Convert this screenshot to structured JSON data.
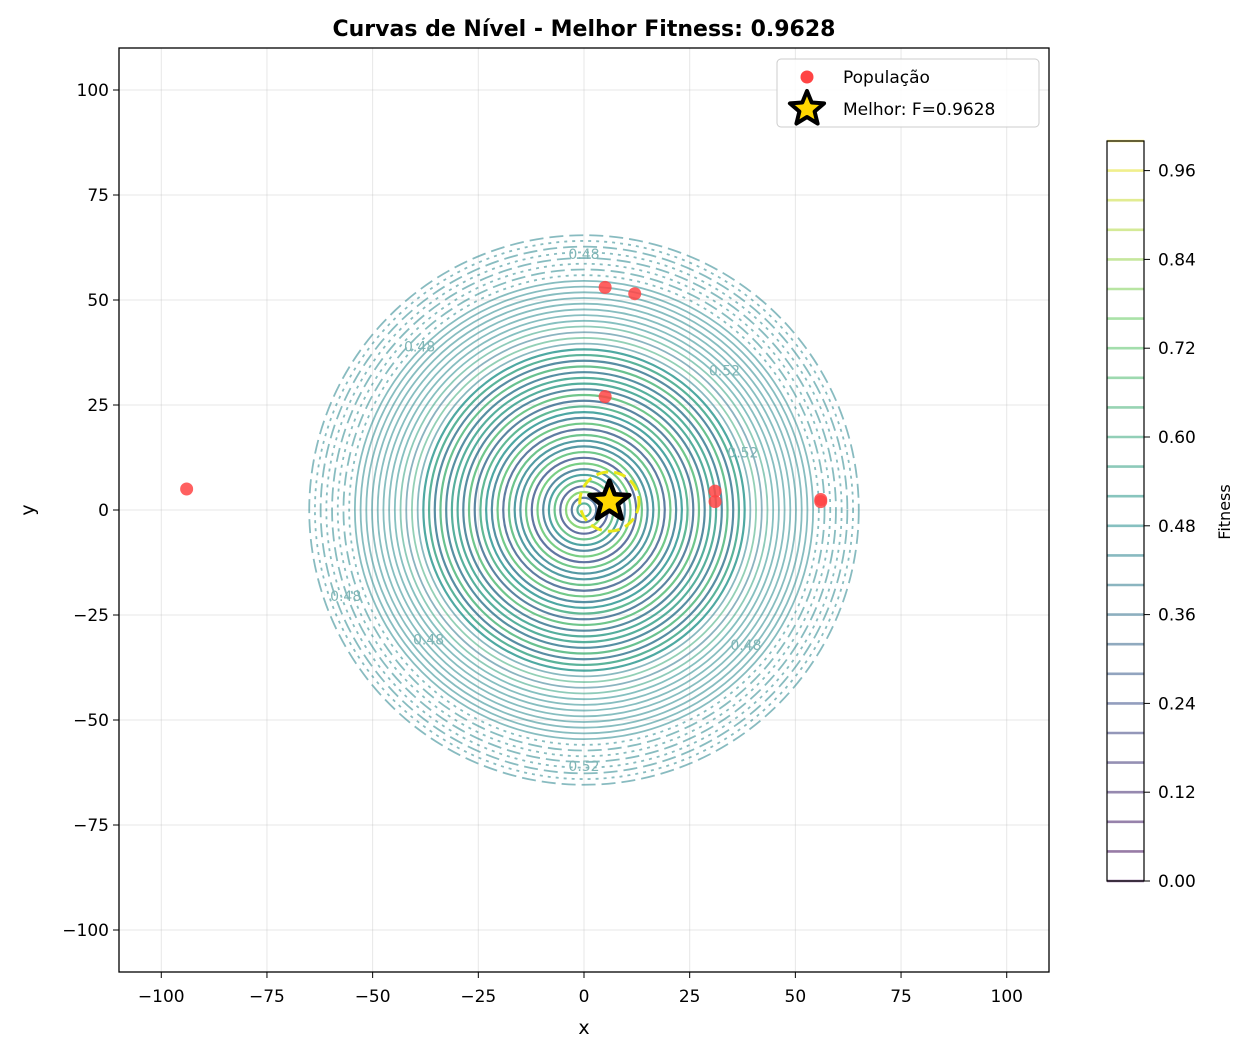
{
  "chart_data": {
    "type": "scatter",
    "title": "Curvas de Nível - Melhor Fitness: 0.9628",
    "xlabel": "x",
    "ylabel": "y",
    "xlim": [
      -110,
      110
    ],
    "ylim": [
      -110,
      110
    ],
    "xticks": [
      "−100",
      "−75",
      "−50",
      "−25",
      "0",
      "25",
      "50",
      "75",
      "100"
    ],
    "yticks": [
      "100",
      "75",
      "50",
      "25",
      "0",
      "−25",
      "−50",
      "−75",
      "−100"
    ],
    "grid": true,
    "legend_position": "top-right",
    "contour": {
      "center": [
        0,
        0
      ],
      "outer_radius": 65,
      "visible_labels": [
        "0.48",
        "0.52",
        "0.48",
        "0.52",
        "0.48",
        "0.52",
        "0.48",
        "0.48"
      ]
    },
    "series": [
      {
        "name": "População",
        "color": "#ff4444",
        "points": [
          {
            "x": -94,
            "y": 5
          },
          {
            "x": 5,
            "y": 53
          },
          {
            "x": 12,
            "y": 51.5
          },
          {
            "x": 31,
            "y": 4.5
          },
          {
            "x": 31,
            "y": 2
          },
          {
            "x": 56,
            "y": 2.5
          },
          {
            "x": 56,
            "y": 2
          },
          {
            "x": 5,
            "y": 27
          }
        ]
      },
      {
        "name": "Melhor: F=0.9628",
        "marker": "star",
        "color": "#ffd700",
        "points": [
          {
            "x": 6,
            "y": 2
          }
        ]
      }
    ],
    "colorbar": {
      "label": "Fitness",
      "ticks": [
        "0.96",
        "0.84",
        "0.72",
        "0.60",
        "0.48",
        "0.36",
        "0.24",
        "0.12",
        "0.00"
      ],
      "range": [
        0,
        1
      ]
    }
  }
}
